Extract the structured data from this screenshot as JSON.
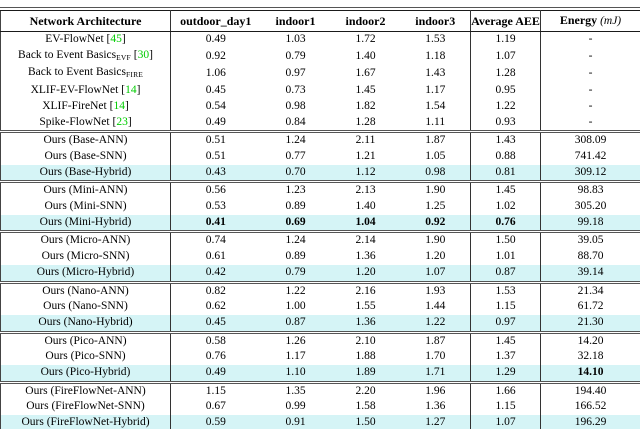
{
  "colors": {
    "highlight_row": "#d5f4f6",
    "citation_green": "#00cc00",
    "rule": "#333333"
  },
  "table": {
    "columns": [
      {
        "label": "Network Architecture"
      },
      {
        "label": "outdoor_day1"
      },
      {
        "label": "indoor1"
      },
      {
        "label": "indoor2"
      },
      {
        "label": "indoor3"
      },
      {
        "label": "Average AEE"
      },
      {
        "label": "Energy",
        "unit": "(mJ)"
      }
    ],
    "groups": [
      {
        "name": "prior-work",
        "rows": [
          {
            "label": "EV-FlowNet",
            "cite": "45",
            "values": [
              "0.49",
              "1.03",
              "1.72",
              "1.53",
              "1.19",
              "-"
            ],
            "highlight": false,
            "bold": []
          },
          {
            "label": "Back to Event Basics",
            "sub": "EVF",
            "cite": "30",
            "values": [
              "0.92",
              "0.79",
              "1.40",
              "1.18",
              "1.07",
              "-"
            ],
            "highlight": false,
            "bold": []
          },
          {
            "label": "Back to Event Basics",
            "sub": "FIRE",
            "values": [
              "1.06",
              "0.97",
              "1.67",
              "1.43",
              "1.28",
              "-"
            ],
            "highlight": false,
            "bold": []
          },
          {
            "label": "XLIF-EV-FlowNet",
            "cite": "14",
            "values": [
              "0.45",
              "0.73",
              "1.45",
              "1.17",
              "0.95",
              "-"
            ],
            "highlight": false,
            "bold": []
          },
          {
            "label": "XLIF-FireNet",
            "cite": "14",
            "values": [
              "0.54",
              "0.98",
              "1.82",
              "1.54",
              "1.22",
              "-"
            ],
            "highlight": false,
            "bold": []
          },
          {
            "label": "Spike-FlowNet",
            "cite": "23",
            "values": [
              "0.49",
              "0.84",
              "1.28",
              "1.11",
              "0.93",
              "-"
            ],
            "highlight": false,
            "bold": []
          }
        ]
      },
      {
        "name": "base",
        "rows": [
          {
            "label": "Ours (Base-ANN)",
            "values": [
              "0.51",
              "1.24",
              "2.11",
              "1.87",
              "1.43",
              "308.09"
            ],
            "highlight": false,
            "bold": []
          },
          {
            "label": "Ours (Base-SNN)",
            "values": [
              "0.51",
              "0.77",
              "1.21",
              "1.05",
              "0.88",
              "741.42"
            ],
            "highlight": false,
            "bold": []
          },
          {
            "label": "Ours (Base-Hybrid)",
            "values": [
              "0.43",
              "0.70",
              "1.12",
              "0.98",
              "0.81",
              "309.12"
            ],
            "highlight": true,
            "bold": []
          }
        ]
      },
      {
        "name": "mini",
        "rows": [
          {
            "label": "Ours (Mini-ANN)",
            "values": [
              "0.56",
              "1.23",
              "2.13",
              "1.90",
              "1.45",
              "98.83"
            ],
            "highlight": false,
            "bold": []
          },
          {
            "label": "Ours (Mini-SNN)",
            "values": [
              "0.53",
              "0.89",
              "1.40",
              "1.25",
              "1.02",
              "305.20"
            ],
            "highlight": false,
            "bold": []
          },
          {
            "label": "Ours (Mini-Hybrid)",
            "values": [
              "0.41",
              "0.69",
              "1.04",
              "0.92",
              "0.76",
              "99.18"
            ],
            "highlight": true,
            "bold": [
              0,
              1,
              2,
              3,
              4
            ]
          }
        ]
      },
      {
        "name": "micro",
        "rows": [
          {
            "label": "Ours (Micro-ANN)",
            "values": [
              "0.74",
              "1.24",
              "2.14",
              "1.90",
              "1.50",
              "39.05"
            ],
            "highlight": false,
            "bold": []
          },
          {
            "label": "Ours (Micro-SNN)",
            "values": [
              "0.61",
              "0.89",
              "1.36",
              "1.20",
              "1.01",
              "88.70"
            ],
            "highlight": false,
            "bold": []
          },
          {
            "label": "Ours (Micro-Hybrid)",
            "values": [
              "0.42",
              "0.79",
              "1.20",
              "1.07",
              "0.87",
              "39.14"
            ],
            "highlight": true,
            "bold": []
          }
        ]
      },
      {
        "name": "nano",
        "rows": [
          {
            "label": "Ours (Nano-ANN)",
            "values": [
              "0.82",
              "1.22",
              "2.16",
              "1.93",
              "1.53",
              "21.34"
            ],
            "highlight": false,
            "bold": []
          },
          {
            "label": "Ours (Nano-SNN)",
            "values": [
              "0.62",
              "1.00",
              "1.55",
              "1.44",
              "1.15",
              "61.72"
            ],
            "highlight": false,
            "bold": []
          },
          {
            "label": "Ours (Nano-Hybrid)",
            "values": [
              "0.45",
              "0.87",
              "1.36",
              "1.22",
              "0.97",
              "21.30"
            ],
            "highlight": true,
            "bold": []
          }
        ]
      },
      {
        "name": "pico",
        "rows": [
          {
            "label": "Ours (Pico-ANN)",
            "values": [
              "0.58",
              "1.26",
              "2.10",
              "1.87",
              "1.45",
              "14.20"
            ],
            "highlight": false,
            "bold": []
          },
          {
            "label": "Ours (Pico-SNN)",
            "values": [
              "0.76",
              "1.17",
              "1.88",
              "1.70",
              "1.37",
              "32.18"
            ],
            "highlight": false,
            "bold": []
          },
          {
            "label": "Ours (Pico-Hybrid)",
            "values": [
              "0.49",
              "1.10",
              "1.89",
              "1.71",
              "1.29",
              "14.10"
            ],
            "highlight": true,
            "bold": [
              5
            ]
          }
        ]
      },
      {
        "name": "fireflownet",
        "rows": [
          {
            "label": "Ours (FireFlowNet-ANN)",
            "values": [
              "1.15",
              "1.35",
              "2.20",
              "1.96",
              "1.66",
              "194.40"
            ],
            "highlight": false,
            "bold": []
          },
          {
            "label": "Ours (FireFlowNet-SNN)",
            "values": [
              "0.67",
              "0.99",
              "1.58",
              "1.36",
              "1.15",
              "166.52"
            ],
            "highlight": false,
            "bold": []
          },
          {
            "label": "Ours (FireFlowNet-Hybrid)",
            "values": [
              "0.59",
              "0.91",
              "1.50",
              "1.27",
              "1.07",
              "196.29"
            ],
            "highlight": true,
            "bold": []
          }
        ]
      }
    ]
  }
}
